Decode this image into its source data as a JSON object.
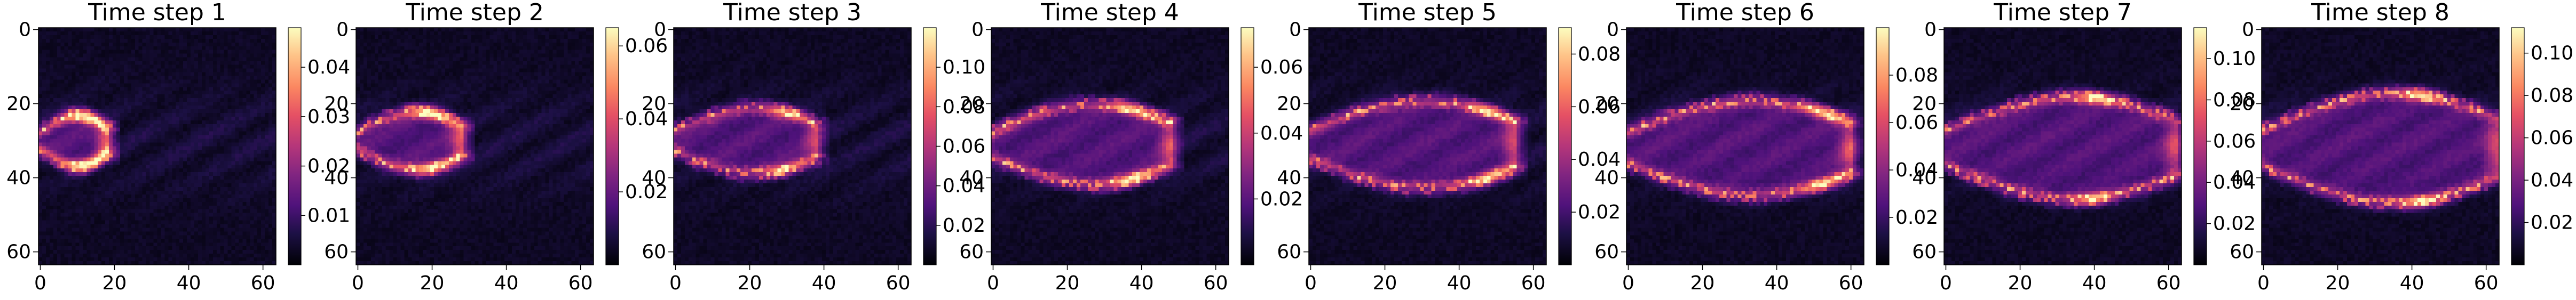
{
  "chart_data": {
    "type": "heatmap",
    "colormap": "magma",
    "grid": false,
    "legend": "colorbar right of each panel",
    "panels": [
      {
        "title": "Time step 1",
        "vmin": 0.0,
        "vmax": 0.048,
        "colorbar_ticks": [
          "0.01",
          "0.02",
          "0.03",
          "0.04"
        ],
        "colorbar_tick_values": [
          0.01,
          0.02,
          0.03,
          0.04
        ],
        "plume": {
          "x_start": 0,
          "x_end": 18,
          "x_hot": 12,
          "y_center": 30,
          "width": 7,
          "peak_intensity": 0.95
        },
        "x_ticks": [
          "0",
          "20",
          "40",
          "60"
        ],
        "y_ticks": [
          "0",
          "20",
          "40",
          "60"
        ],
        "xlim": [
          0,
          63
        ],
        "ylim": [
          63,
          0
        ]
      },
      {
        "title": "Time step 2",
        "vmin": 0.0,
        "vmax": 0.065,
        "colorbar_ticks": [
          "0.02",
          "0.04",
          "0.06"
        ],
        "colorbar_tick_values": [
          0.02,
          0.04,
          0.06
        ],
        "plume": {
          "x_start": 0,
          "x_end": 28,
          "x_hot": 20,
          "y_center": 30,
          "width": 8,
          "peak_intensity": 0.9
        },
        "x_ticks": [
          "0",
          "20",
          "40",
          "60"
        ],
        "y_ticks": [
          "0",
          "20",
          "40",
          "60"
        ],
        "xlim": [
          0,
          63
        ],
        "ylim": [
          63,
          0
        ]
      },
      {
        "title": "Time step 3",
        "vmin": 0.0,
        "vmax": 0.12,
        "colorbar_ticks": [
          "0.02",
          "0.04",
          "0.06",
          "0.08",
          "0.10"
        ],
        "colorbar_tick_values": [
          0.02,
          0.04,
          0.06,
          0.08,
          0.1
        ],
        "plume": {
          "x_start": 0,
          "x_end": 38,
          "x_hot": 30,
          "y_center": 30,
          "width": 9,
          "peak_intensity": 0.7
        },
        "x_ticks": [
          "0",
          "20",
          "40",
          "60"
        ],
        "y_ticks": [
          "0",
          "20",
          "40",
          "60"
        ],
        "xlim": [
          0,
          63
        ],
        "ylim": [
          63,
          0
        ]
      },
      {
        "title": "Time step 4",
        "vmin": 0.0,
        "vmax": 0.072,
        "colorbar_ticks": [
          "0.02",
          "0.04",
          "0.06"
        ],
        "colorbar_tick_values": [
          0.02,
          0.04,
          0.06
        ],
        "plume": {
          "x_start": 0,
          "x_end": 48,
          "x_hot": 38,
          "y_center": 31,
          "width": 11,
          "peak_intensity": 0.85
        },
        "x_ticks": [
          "0",
          "20",
          "40",
          "60"
        ],
        "y_ticks": [
          "0",
          "20",
          "40",
          "60"
        ],
        "xlim": [
          0,
          63
        ],
        "ylim": [
          63,
          0
        ]
      },
      {
        "title": "Time step 5",
        "vmin": 0.0,
        "vmax": 0.09,
        "colorbar_ticks": [
          "0.02",
          "0.04",
          "0.06",
          "0.08"
        ],
        "colorbar_tick_values": [
          0.02,
          0.04,
          0.06,
          0.08
        ],
        "plume": {
          "x_start": 0,
          "x_end": 55,
          "x_hot": 48,
          "y_center": 31,
          "width": 12,
          "peak_intensity": 0.8
        },
        "x_ticks": [
          "0",
          "20",
          "40",
          "60"
        ],
        "y_ticks": [
          "0",
          "20",
          "40",
          "60"
        ],
        "xlim": [
          0,
          63
        ],
        "ylim": [
          63,
          0
        ]
      },
      {
        "title": "Time step 6",
        "vmin": 0.0,
        "vmax": 0.1,
        "colorbar_ticks": [
          "0.02",
          "0.04",
          "0.06",
          "0.08"
        ],
        "colorbar_tick_values": [
          0.02,
          0.04,
          0.06,
          0.08
        ],
        "plume": {
          "x_start": 0,
          "x_end": 60,
          "x_hot": 53,
          "y_center": 32,
          "width": 13,
          "peak_intensity": 0.85
        },
        "x_ticks": [
          "0",
          "20",
          "40",
          "60"
        ],
        "y_ticks": [
          "0",
          "20",
          "40",
          "60"
        ],
        "xlim": [
          0,
          63
        ],
        "ylim": [
          63,
          0
        ]
      },
      {
        "title": "Time step 7",
        "vmin": 0.0,
        "vmax": 0.115,
        "colorbar_ticks": [
          "0.02",
          "0.04",
          "0.06",
          "0.08",
          "0.10"
        ],
        "colorbar_tick_values": [
          0.02,
          0.04,
          0.06,
          0.08,
          0.1
        ],
        "plume": {
          "x_start": 0,
          "x_end": 62,
          "x_hot": 40,
          "y_center": 32,
          "width": 14,
          "peak_intensity": 0.8
        },
        "x_ticks": [
          "0",
          "20",
          "40",
          "60"
        ],
        "y_ticks": [
          "0",
          "20",
          "40",
          "60"
        ],
        "xlim": [
          0,
          63
        ],
        "ylim": [
          63,
          0
        ]
      },
      {
        "title": "Time step 8",
        "vmin": 0.0,
        "vmax": 0.112,
        "colorbar_ticks": [
          "0.02",
          "0.04",
          "0.06",
          "0.08",
          "0.10"
        ],
        "colorbar_tick_values": [
          0.02,
          0.04,
          0.06,
          0.08,
          0.1
        ],
        "plume": {
          "x_start": 0,
          "x_end": 63,
          "x_hot": 42,
          "y_center": 32,
          "width": 15,
          "peak_intensity": 0.8
        },
        "x_ticks": [
          "0",
          "20",
          "40",
          "60"
        ],
        "y_ticks": [
          "0",
          "20",
          "40",
          "60"
        ],
        "xlim": [
          0,
          63
        ],
        "ylim": [
          63,
          0
        ]
      }
    ]
  }
}
